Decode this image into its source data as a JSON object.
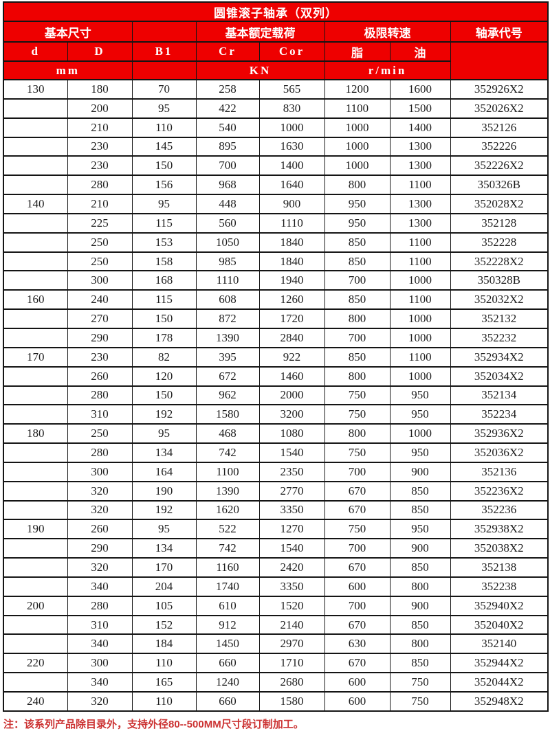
{
  "title": "圆锥滚子轴承（双列）",
  "header": {
    "group_basic_dim": "基本尺寸",
    "group_rated_load": "基本额定载荷",
    "group_limit_speed": "极限转速",
    "group_bearing_code": "轴承代号",
    "col_d": "d",
    "col_D": "D",
    "col_B1": "B1",
    "col_Cr": "Cr",
    "col_Cor": "Cor",
    "col_grease": "脂",
    "col_oil": "油",
    "unit_mm": "mm",
    "unit_kn": "KN",
    "unit_rmin": "r/min"
  },
  "colors": {
    "header_bg": "#ee0000",
    "header_text": "#ffffff",
    "border": "#141414",
    "note_text": "#cc3333"
  },
  "rows": [
    [
      "130",
      "180",
      "70",
      "258",
      "565",
      "1200",
      "1600",
      "352926X2"
    ],
    [
      "",
      "200",
      "95",
      "422",
      "830",
      "1100",
      "1500",
      "352026X2"
    ],
    [
      "",
      "210",
      "110",
      "540",
      "1000",
      "1000",
      "1400",
      "352126"
    ],
    [
      "",
      "230",
      "145",
      "895",
      "1630",
      "1000",
      "1300",
      "352226"
    ],
    [
      "",
      "230",
      "150",
      "700",
      "1400",
      "1000",
      "1300",
      "352226X2"
    ],
    [
      "",
      "280",
      "156",
      "968",
      "1640",
      "800",
      "1100",
      "350326B"
    ],
    [
      "140",
      "210",
      "95",
      "448",
      "900",
      "950",
      "1300",
      "352028X2"
    ],
    [
      "",
      "225",
      "115",
      "560",
      "1110",
      "950",
      "1300",
      "352128"
    ],
    [
      "",
      "250",
      "153",
      "1050",
      "1840",
      "850",
      "1100",
      "352228"
    ],
    [
      "",
      "250",
      "158",
      "985",
      "1840",
      "850",
      "1100",
      "352228X2"
    ],
    [
      "",
      "300",
      "168",
      "1110",
      "1940",
      "700",
      "1000",
      "350328B"
    ],
    [
      "160",
      "240",
      "115",
      "608",
      "1260",
      "850",
      "1100",
      "352032X2"
    ],
    [
      "",
      "270",
      "150",
      "872",
      "1720",
      "800",
      "1000",
      "352132"
    ],
    [
      "",
      "290",
      "178",
      "1390",
      "2840",
      "700",
      "1000",
      "352232"
    ],
    [
      "170",
      "230",
      "82",
      "395",
      "922",
      "850",
      "1100",
      "352934X2"
    ],
    [
      "",
      "260",
      "120",
      "672",
      "1460",
      "800",
      "1000",
      "352034X2"
    ],
    [
      "",
      "280",
      "150",
      "962",
      "2000",
      "750",
      "950",
      "352134"
    ],
    [
      "",
      "310",
      "192",
      "1580",
      "3200",
      "750",
      "950",
      "352234"
    ],
    [
      "180",
      "250",
      "95",
      "468",
      "1080",
      "800",
      "1000",
      "352936X2"
    ],
    [
      "",
      "280",
      "134",
      "742",
      "1540",
      "750",
      "950",
      "352036X2"
    ],
    [
      "",
      "300",
      "164",
      "1100",
      "2350",
      "700",
      "900",
      "352136"
    ],
    [
      "",
      "320",
      "190",
      "1390",
      "2770",
      "670",
      "850",
      "352236X2"
    ],
    [
      "",
      "320",
      "192",
      "1620",
      "3350",
      "670",
      "850",
      "352236"
    ],
    [
      "190",
      "260",
      "95",
      "522",
      "1270",
      "750",
      "950",
      "352938X2"
    ],
    [
      "",
      "290",
      "134",
      "742",
      "1540",
      "700",
      "900",
      "352038X2"
    ],
    [
      "",
      "320",
      "170",
      "1160",
      "2420",
      "670",
      "850",
      "352138"
    ],
    [
      "",
      "340",
      "204",
      "1740",
      "3350",
      "600",
      "800",
      "352238"
    ],
    [
      "200",
      "280",
      "105",
      "610",
      "1520",
      "700",
      "900",
      "352940X2"
    ],
    [
      "",
      "310",
      "152",
      "912",
      "2140",
      "670",
      "850",
      "352040X2"
    ],
    [
      "",
      "340",
      "184",
      "1450",
      "2970",
      "630",
      "800",
      "352140"
    ],
    [
      "220",
      "300",
      "110",
      "660",
      "1710",
      "670",
      "850",
      "352944X2"
    ],
    [
      "",
      "340",
      "165",
      "1240",
      "2680",
      "600",
      "750",
      "352044X2"
    ],
    [
      "240",
      "320",
      "110",
      "660",
      "1580",
      "600",
      "750",
      "352948X2"
    ]
  ],
  "note": "注：该系列产品除目录外，支持外径80--500MM尺寸段订制加工。"
}
